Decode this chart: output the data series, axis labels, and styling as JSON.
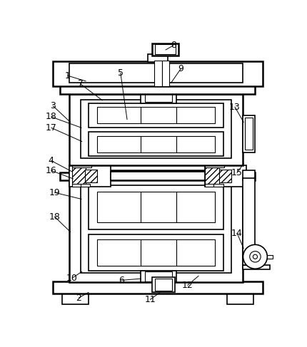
{
  "background_color": "#ffffff",
  "line_color": "#000000",
  "lw_thin": 0.8,
  "lw_med": 1.2,
  "lw_thick": 1.8,
  "label_fs": 9
}
